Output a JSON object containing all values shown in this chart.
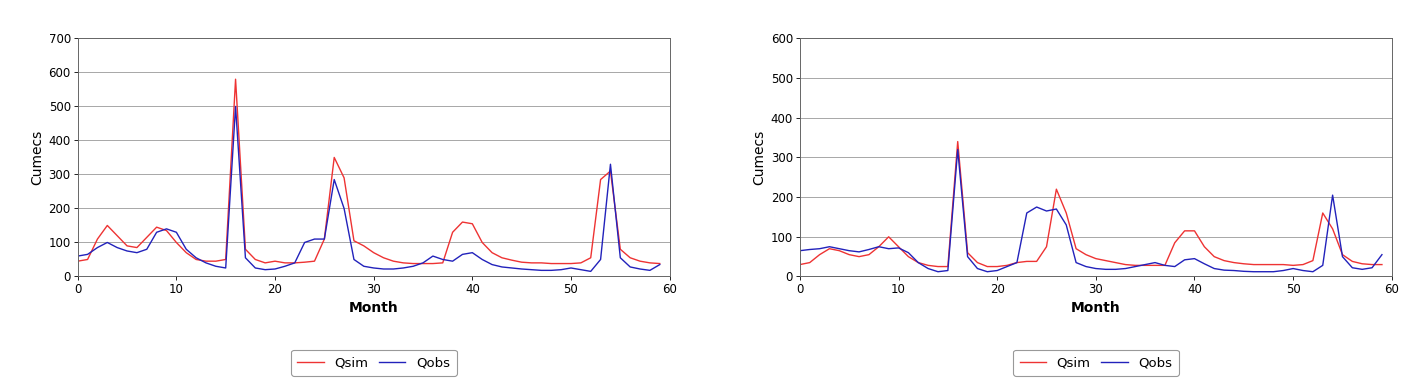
{
  "chart1": {
    "xlabel": "Month",
    "ylabel": "Cumecs",
    "xlim": [
      0,
      60
    ],
    "ylim": [
      0,
      700
    ],
    "yticks": [
      0,
      100,
      200,
      300,
      400,
      500,
      600,
      700
    ],
    "xticks": [
      0,
      10,
      20,
      30,
      40,
      50,
      60
    ],
    "qsim_color": "#EE3333",
    "qobs_color": "#2222BB",
    "qsim": [
      45,
      50,
      110,
      150,
      120,
      90,
      85,
      115,
      145,
      135,
      100,
      70,
      50,
      45,
      45,
      50,
      580,
      80,
      50,
      40,
      45,
      40,
      40,
      42,
      45,
      110,
      350,
      290,
      105,
      90,
      70,
      55,
      45,
      40,
      38,
      38,
      38,
      40,
      130,
      160,
      155,
      100,
      70,
      55,
      48,
      42,
      40,
      40,
      38,
      38,
      38,
      40,
      55,
      285,
      310,
      80,
      55,
      45,
      40,
      38
    ],
    "qobs": [
      60,
      65,
      85,
      100,
      85,
      75,
      70,
      80,
      130,
      140,
      130,
      80,
      55,
      40,
      30,
      25,
      500,
      55,
      25,
      20,
      22,
      30,
      40,
      100,
      110,
      110,
      285,
      200,
      50,
      30,
      25,
      22,
      22,
      25,
      30,
      40,
      60,
      50,
      45,
      65,
      70,
      50,
      35,
      28,
      25,
      22,
      20,
      18,
      18,
      20,
      25,
      20,
      15,
      50,
      330,
      55,
      28,
      22,
      18,
      35
    ]
  },
  "chart2": {
    "xlabel": "Month",
    "ylabel": "Cumecs",
    "xlim": [
      0,
      60
    ],
    "ylim": [
      0,
      600
    ],
    "yticks": [
      0,
      100,
      200,
      300,
      400,
      500,
      600
    ],
    "xticks": [
      0,
      10,
      20,
      30,
      40,
      50,
      60
    ],
    "qsim_color": "#EE3333",
    "qobs_color": "#2222BB",
    "qsim": [
      30,
      35,
      55,
      70,
      65,
      55,
      50,
      55,
      75,
      100,
      75,
      50,
      35,
      28,
      25,
      25,
      340,
      60,
      35,
      25,
      25,
      28,
      35,
      38,
      38,
      75,
      220,
      160,
      70,
      55,
      45,
      40,
      35,
      30,
      28,
      28,
      28,
      28,
      85,
      115,
      115,
      75,
      50,
      40,
      35,
      32,
      30,
      30,
      30,
      30,
      28,
      30,
      40,
      160,
      120,
      55,
      38,
      32,
      30,
      30
    ],
    "qobs": [
      65,
      68,
      70,
      75,
      70,
      65,
      62,
      68,
      75,
      70,
      72,
      60,
      35,
      20,
      12,
      15,
      320,
      50,
      20,
      12,
      15,
      25,
      35,
      160,
      175,
      165,
      170,
      130,
      35,
      25,
      20,
      18,
      18,
      20,
      25,
      30,
      35,
      28,
      25,
      42,
      45,
      32,
      20,
      16,
      15,
      13,
      12,
      12,
      12,
      15,
      20,
      15,
      12,
      28,
      205,
      50,
      22,
      18,
      22,
      55
    ]
  },
  "legend_qsim": "Qsim",
  "legend_qobs": "Qobs",
  "background_color": "#FFFFFF",
  "grid_color": "#999999",
  "font_size_label": 10,
  "font_size_tick": 8.5,
  "font_size_legend": 9.5
}
